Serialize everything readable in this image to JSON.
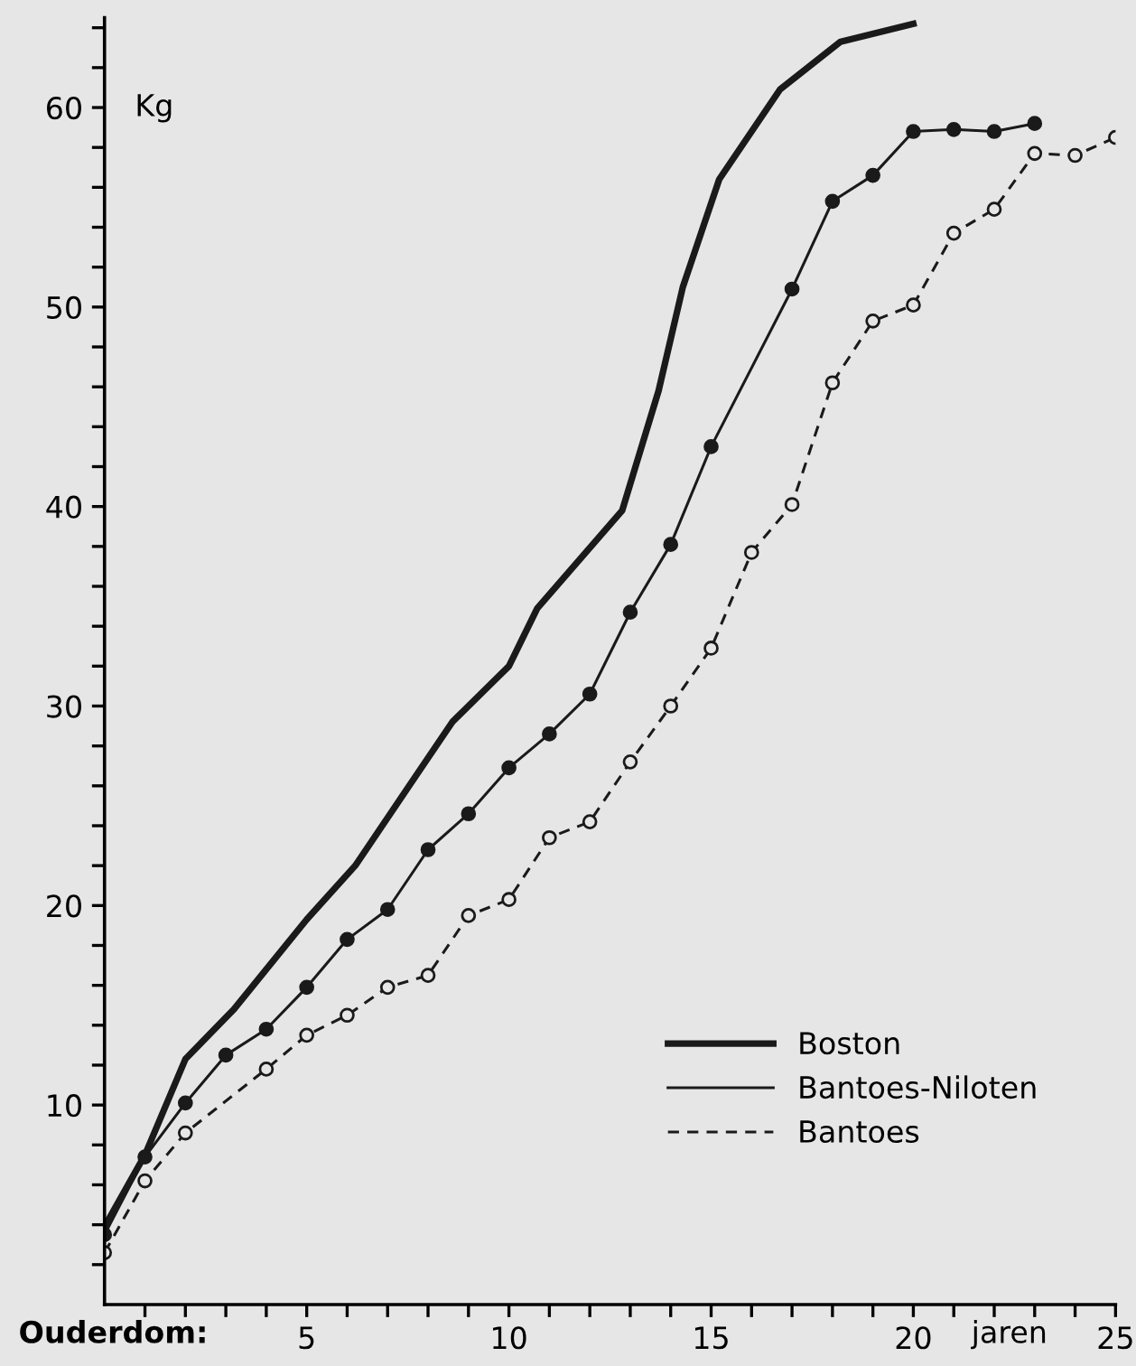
{
  "chart_data": {
    "type": "line",
    "ylabel": "Kg",
    "xlabel": "jaren",
    "annotations": [
      "Ouderdom:"
    ],
    "xlim": [
      0,
      25
    ],
    "ylim": [
      0,
      64.5
    ],
    "xticks": [
      {
        "value": 1,
        "label": null
      },
      {
        "value": 2,
        "label": null
      },
      {
        "value": 3,
        "label": null
      },
      {
        "value": 4,
        "label": null
      },
      5,
      {
        "value": 6,
        "label": null
      },
      {
        "value": 7,
        "label": null
      },
      {
        "value": 8,
        "label": null
      },
      {
        "value": 9,
        "label": null
      },
      10,
      {
        "value": 11,
        "label": null
      },
      {
        "value": 12,
        "label": null
      },
      {
        "value": 13,
        "label": null
      },
      {
        "value": 14,
        "label": null
      },
      15,
      {
        "value": 16,
        "label": null
      },
      {
        "value": 17,
        "label": null
      },
      {
        "value": 18,
        "label": null
      },
      {
        "value": 19,
        "label": null
      },
      20,
      {
        "value": 21,
        "label": null
      },
      {
        "value": 22,
        "label": null
      },
      {
        "value": 23,
        "label": null
      },
      {
        "value": 24,
        "label": null
      },
      25
    ],
    "yticks": [
      {
        "value": 2,
        "label": null
      },
      {
        "value": 4,
        "label": null
      },
      {
        "value": 6,
        "label": null
      },
      {
        "value": 8,
        "label": null
      },
      10,
      {
        "value": 12,
        "label": null
      },
      {
        "value": 14,
        "label": null
      },
      {
        "value": 16,
        "label": null
      },
      {
        "value": 18,
        "label": null
      },
      20,
      {
        "value": 22,
        "label": null
      },
      {
        "value": 24,
        "label": null
      },
      {
        "value": 26,
        "label": null
      },
      {
        "value": 28,
        "label": null
      },
      30,
      {
        "value": 32,
        "label": null
      },
      {
        "value": 34,
        "label": null
      },
      {
        "value": 36,
        "label": null
      },
      {
        "value": 38,
        "label": null
      },
      40,
      {
        "value": 42,
        "label": null
      },
      {
        "value": 44,
        "label": null
      },
      {
        "value": 46,
        "label": null
      },
      {
        "value": 48,
        "label": null
      },
      50,
      {
        "value": 52,
        "label": null
      },
      {
        "value": 54,
        "label": null
      },
      {
        "value": 56,
        "label": null
      },
      {
        "value": 58,
        "label": null
      },
      60,
      {
        "value": 62,
        "label": null
      },
      {
        "value": 64,
        "label": null
      }
    ],
    "grid": false,
    "legend": "bottom right",
    "series": [
      {
        "name": "Boston",
        "color": "#1a1a1a",
        "marker": "none",
        "line_style": "solid",
        "x": [
          0,
          1,
          2,
          3.2,
          5,
          6.2,
          7.7,
          8.6,
          10,
          10.7,
          12.8,
          13.7,
          14.3,
          15.2,
          16.7,
          18.2,
          20
        ],
        "values": [
          3.9,
          7.5,
          12.3,
          14.8,
          19.3,
          22,
          26.5,
          29.2,
          32,
          34.9,
          39.8,
          45.8,
          51,
          56.4,
          60.9,
          63.3,
          64.2
        ]
      },
      {
        "name": "Bantoes-Niloten",
        "color": "#1a1a1a",
        "marker": "circle",
        "line_style": "solid",
        "x": [
          0,
          1,
          2,
          3,
          4,
          5,
          6,
          7,
          8,
          9,
          10,
          11,
          12,
          13,
          14,
          15,
          17,
          18,
          19,
          20,
          21,
          22,
          23
        ],
        "values": [
          3.5,
          7.4,
          10.1,
          12.5,
          13.8,
          15.9,
          18.3,
          19.8,
          22.8,
          24.6,
          26.9,
          28.6,
          30.6,
          34.7,
          38.1,
          43,
          50.9,
          55.3,
          56.6,
          58.8,
          58.9,
          58.8,
          59.2
        ]
      },
      {
        "name": "Bantoes",
        "color": "#1a1a1a",
        "marker": "circle",
        "line_style": "dashed",
        "x": [
          0,
          1,
          2,
          4,
          5,
          6,
          7,
          8,
          9,
          10,
          11,
          12,
          13,
          14,
          15,
          16,
          17,
          18,
          19,
          20,
          21,
          22,
          23,
          24,
          25
        ],
        "values": [
          2.6,
          6.2,
          8.6,
          11.8,
          13.5,
          14.5,
          15.9,
          16.5,
          19.5,
          20.3,
          23.4,
          24.2,
          27.2,
          30,
          32.9,
          37.7,
          40.1,
          46.2,
          49.3,
          50.1,
          53.7,
          54.9,
          57.7,
          57.6,
          58.5
        ]
      }
    ]
  }
}
